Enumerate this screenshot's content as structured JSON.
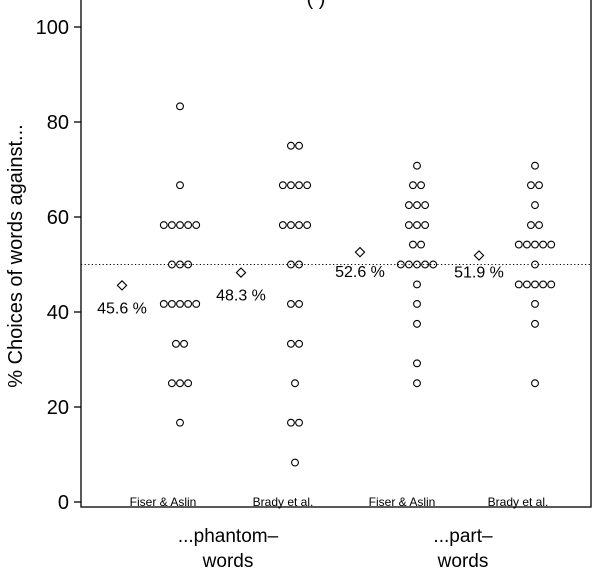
{
  "chart_data": {
    "type": "scatter",
    "title_fragment": "(                                  )",
    "ylabel": "% Choices of words against...",
    "ylim": [
      0,
      100
    ],
    "yticks": [
      0,
      20,
      40,
      60,
      80,
      100
    ],
    "reference_line": 50,
    "groups": [
      {
        "label": "...phantom–\nwords",
        "conditions": [
          {
            "label": "Fiser & Aslin",
            "mean": 45.6,
            "mean_label": "45.6 %",
            "points": [
              83.3,
              66.7,
              58.3,
              58.3,
              58.3,
              58.3,
              58.3,
              50,
              50,
              50,
              41.7,
              41.7,
              41.7,
              41.7,
              41.7,
              33.3,
              33.3,
              25,
              25,
              25,
              16.7
            ]
          },
          {
            "label": "Brady et al.",
            "mean": 48.3,
            "mean_label": "48.3 %",
            "points": [
              75,
              75,
              66.7,
              66.7,
              66.7,
              66.7,
              58.3,
              58.3,
              58.3,
              58.3,
              50,
              50,
              41.7,
              41.7,
              33.3,
              33.3,
              25,
              16.7,
              16.7,
              8.3
            ]
          }
        ]
      },
      {
        "label": "...part–\nwords",
        "conditions": [
          {
            "label": "Fiser & Aslin",
            "mean": 52.6,
            "mean_label": "52.6 %",
            "points": [
              70.8,
              66.7,
              66.7,
              62.5,
              62.5,
              62.5,
              58.3,
              58.3,
              58.3,
              54.2,
              54.2,
              50,
              50,
              50,
              50,
              50,
              45.8,
              41.7,
              37.5,
              29.2,
              25
            ]
          },
          {
            "label": "Brady et al.",
            "mean": 51.9,
            "mean_label": "51.9 %",
            "points": [
              70.8,
              66.7,
              66.7,
              62.5,
              58.3,
              58.3,
              54.2,
              54.2,
              54.2,
              54.2,
              54.2,
              50,
              45.8,
              45.8,
              45.8,
              45.8,
              45.8,
              41.7,
              37.5,
              25
            ]
          }
        ]
      }
    ]
  }
}
